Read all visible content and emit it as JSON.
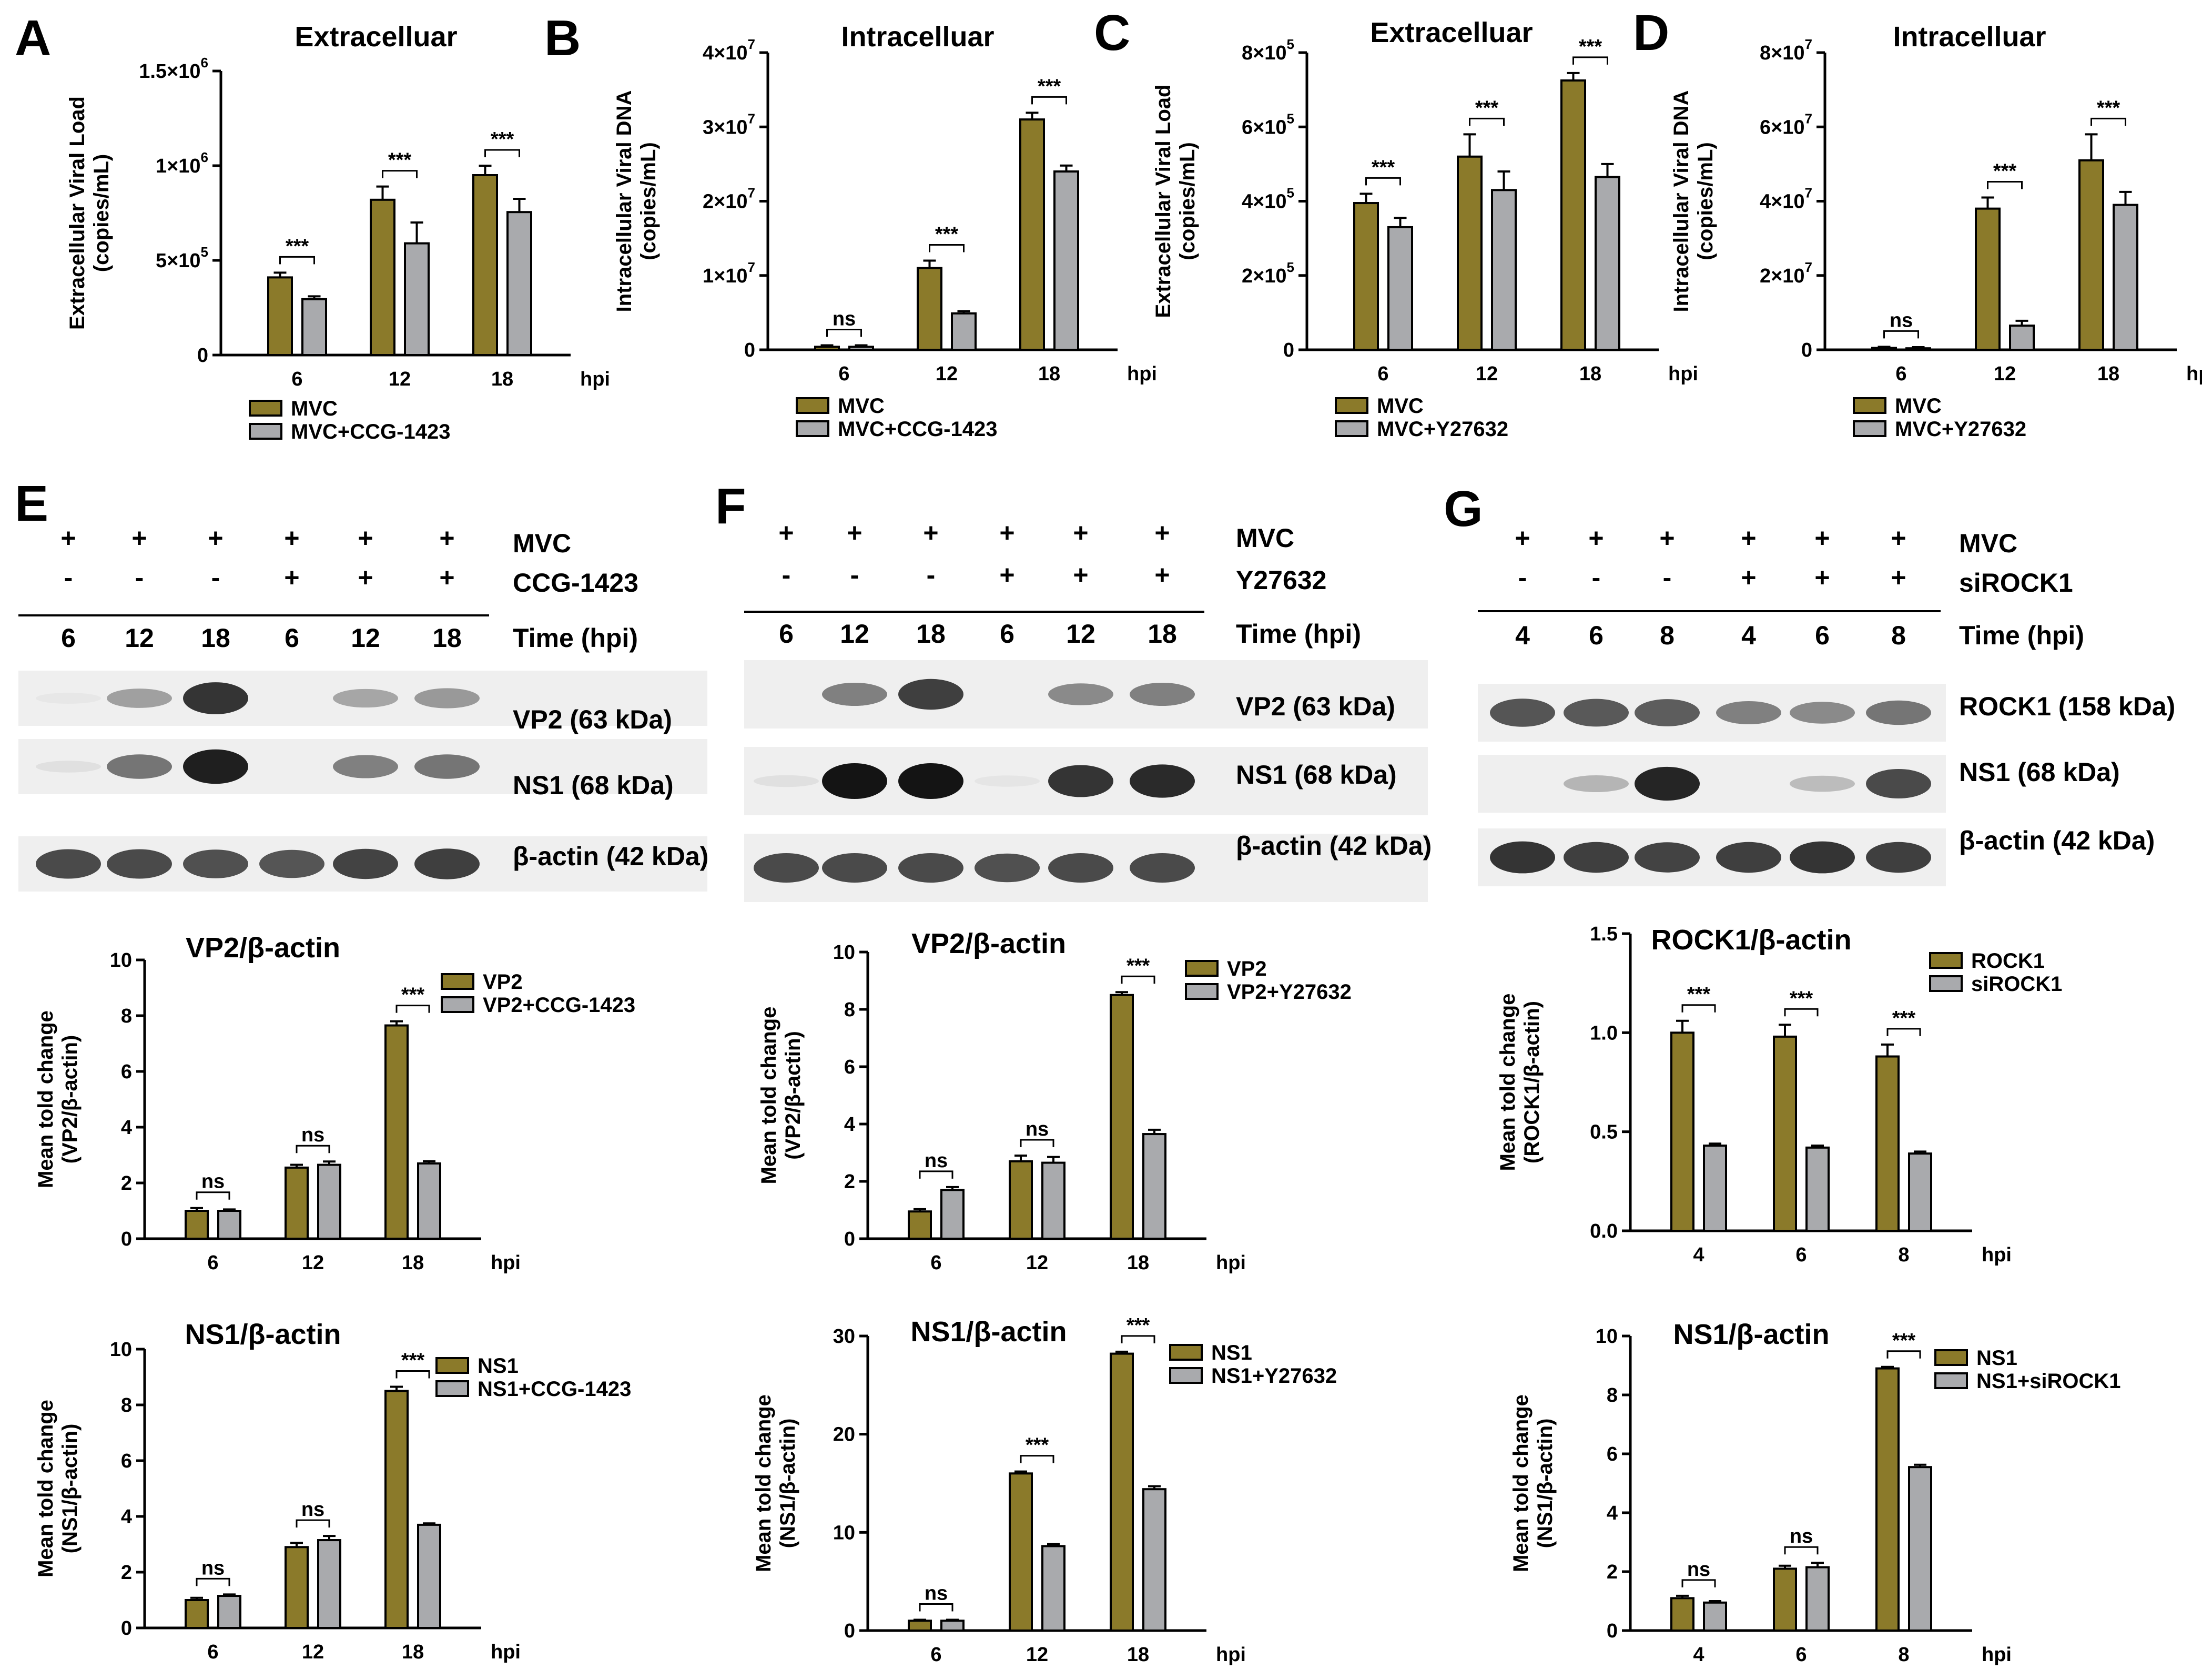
{
  "colors": {
    "drug": "#8b7a2a",
    "control": "#a9aaad",
    "error": "#000000"
  },
  "panels": {
    "A": {
      "letter": "A"
    },
    "B": {
      "letter": "B"
    },
    "C": {
      "letter": "C"
    },
    "D": {
      "letter": "D"
    },
    "E": {
      "letter": "E"
    },
    "F": {
      "letter": "F"
    },
    "G": {
      "letter": "G"
    }
  },
  "blots": [
    {
      "id": "E",
      "top_rows": [
        {
          "signs": [
            "+",
            "+",
            "+",
            "+",
            "+",
            "+"
          ],
          "label": "MVC"
        },
        {
          "signs": [
            "-",
            "-",
            "-",
            "+",
            "+",
            "+"
          ],
          "label": "CCG-1423"
        }
      ],
      "times": [
        "6",
        "12",
        "18",
        "6",
        "12",
        "18"
      ],
      "time_label": "Time (hpi)",
      "bands": [
        {
          "label": "VP2 (63 kDa)",
          "intensity": [
            0.02,
            0.35,
            0.85,
            0.0,
            0.32,
            0.38
          ]
        },
        {
          "label": "NS1 (68 kDa)",
          "intensity": [
            0.05,
            0.55,
            0.95,
            0.0,
            0.5,
            0.55
          ]
        },
        {
          "label": "β-actin (42 kDa)",
          "intensity": [
            0.75,
            0.75,
            0.72,
            0.7,
            0.78,
            0.8
          ]
        }
      ]
    },
    {
      "id": "F",
      "top_rows": [
        {
          "signs": [
            "+",
            "+",
            "+",
            "+",
            "+",
            "+"
          ],
          "label": "MVC"
        },
        {
          "signs": [
            "-",
            "-",
            "-",
            "+",
            "+",
            "+"
          ],
          "label": "Y27632"
        }
      ],
      "times": [
        "6",
        "12",
        "18",
        "6",
        "12",
        "18"
      ],
      "time_label": "Time (hpi)",
      "bands": [
        {
          "label": "VP2 (63 kDa)",
          "intensity": [
            0.0,
            0.5,
            0.8,
            0.0,
            0.45,
            0.5
          ]
        },
        {
          "label": "NS1 (68 kDa)",
          "intensity": [
            0.05,
            1.0,
            1.0,
            0.03,
            0.85,
            0.9
          ]
        },
        {
          "label": "β-actin (42 kDa)",
          "intensity": [
            0.75,
            0.75,
            0.75,
            0.72,
            0.75,
            0.75
          ]
        }
      ]
    },
    {
      "id": "G",
      "top_rows": [
        {
          "signs": [
            "+",
            "+",
            "+",
            "+",
            "+",
            "+"
          ],
          "label": "MVC"
        },
        {
          "signs": [
            "-",
            "-",
            "-",
            "+",
            "+",
            "+"
          ],
          "label": "siROCK1"
        }
      ],
      "times": [
        "4",
        "6",
        "8",
        "4",
        "6",
        "8"
      ],
      "time_label": "Time (hpi)",
      "bands": [
        {
          "label": "ROCK1 (158 kDa)",
          "intensity": [
            0.7,
            0.68,
            0.66,
            0.5,
            0.45,
            0.55
          ]
        },
        {
          "label": "NS1 (68 kDa)",
          "intensity": [
            0.0,
            0.25,
            0.92,
            0.0,
            0.22,
            0.75
          ]
        },
        {
          "label": "β-actin (42 kDa)",
          "intensity": [
            0.85,
            0.8,
            0.78,
            0.8,
            0.85,
            0.8
          ]
        }
      ]
    }
  ],
  "chart_data": [
    {
      "id": "A",
      "type": "bar",
      "title": "Extracelluar",
      "ylabel": [
        "Extracellular Viral Load",
        "(copies/mL)"
      ],
      "xunit": "hpi",
      "categories": [
        "6",
        "12",
        "18"
      ],
      "ylim": [
        0,
        1500000
      ],
      "yticks": [
        0,
        500000,
        1000000,
        1500000
      ],
      "ytick_labels": [
        {
          "m": "0",
          "e": ""
        },
        {
          "m": "5×10",
          "e": "5"
        },
        {
          "m": "1×10",
          "e": "6"
        },
        {
          "m": "1.5×10",
          "e": "6"
        }
      ],
      "series": [
        {
          "name": "MVC",
          "values": [
            410000,
            820000,
            950000
          ],
          "errors": [
            25000,
            70000,
            50000
          ]
        },
        {
          "name": "MVC+CCG-1423",
          "values": [
            295000,
            590000,
            755000
          ],
          "errors": [
            15000,
            110000,
            70000
          ]
        }
      ],
      "sig": [
        "***",
        "***",
        "***"
      ]
    },
    {
      "id": "B",
      "type": "bar",
      "title": "Intracelluar",
      "ylabel": [
        "Intracellular Viral DNA",
        "(copies/mL)"
      ],
      "xunit": "hpi",
      "categories": [
        "6",
        "12",
        "18"
      ],
      "ylim": [
        0,
        40000000
      ],
      "yticks": [
        0,
        10000000,
        20000000,
        30000000,
        40000000
      ],
      "ytick_labels": [
        {
          "m": "0",
          "e": ""
        },
        {
          "m": "1×10",
          "e": "7"
        },
        {
          "m": "2×10",
          "e": "7"
        },
        {
          "m": "3×10",
          "e": "7"
        },
        {
          "m": "4×10",
          "e": "7"
        }
      ],
      "series": [
        {
          "name": "MVC",
          "values": [
            400000,
            11000000,
            31000000
          ],
          "errors": [
            200000,
            1000000,
            900000
          ]
        },
        {
          "name": "MVC+CCG-1423",
          "values": [
            400000,
            4900000,
            24000000
          ],
          "errors": [
            200000,
            300000,
            800000
          ]
        }
      ],
      "sig": [
        "ns",
        "***",
        "***"
      ]
    },
    {
      "id": "C",
      "type": "bar",
      "title": "Extracelluar",
      "ylabel": [
        "Extracellular Viral Load",
        "(copies/mL)"
      ],
      "xunit": "hpi",
      "categories": [
        "6",
        "12",
        "18"
      ],
      "ylim": [
        0,
        800000
      ],
      "yticks": [
        0,
        200000,
        400000,
        600000,
        800000
      ],
      "ytick_labels": [
        {
          "m": "0",
          "e": ""
        },
        {
          "m": "2×10",
          "e": "5"
        },
        {
          "m": "4×10",
          "e": "5"
        },
        {
          "m": "6×10",
          "e": "5"
        },
        {
          "m": "8×10",
          "e": "5"
        }
      ],
      "series": [
        {
          "name": "MVC",
          "values": [
            395000,
            520000,
            725000
          ],
          "errors": [
            25000,
            60000,
            20000
          ]
        },
        {
          "name": "MVC+Y27632",
          "values": [
            330000,
            430000,
            465000
          ],
          "errors": [
            25000,
            50000,
            35000
          ]
        }
      ],
      "sig": [
        "***",
        "***",
        "***"
      ]
    },
    {
      "id": "D",
      "type": "bar",
      "title": "Intracelluar",
      "ylabel": [
        "Intracellular Viral DNA",
        "(copies/mL)"
      ],
      "xunit": "hpi",
      "categories": [
        "6",
        "12",
        "18"
      ],
      "ylim": [
        0,
        80000000
      ],
      "yticks": [
        0,
        20000000,
        40000000,
        60000000,
        80000000
      ],
      "ytick_labels": [
        {
          "m": "0",
          "e": ""
        },
        {
          "m": "2×10",
          "e": "7"
        },
        {
          "m": "4×10",
          "e": "7"
        },
        {
          "m": "6×10",
          "e": "7"
        },
        {
          "m": "8×10",
          "e": "7"
        }
      ],
      "series": [
        {
          "name": "MVC",
          "values": [
            500000,
            38000000,
            51000000
          ],
          "errors": [
            300000,
            3000000,
            7000000
          ]
        },
        {
          "name": "MVC+Y27632",
          "values": [
            400000,
            6500000,
            39000000
          ],
          "errors": [
            300000,
            1300000,
            3500000
          ]
        }
      ],
      "sig": [
        "ns",
        "***",
        "***"
      ]
    },
    {
      "id": "E1",
      "type": "bar",
      "title": "VP2/β-actin",
      "ylabel": [
        "Mean told change",
        "(VP2/β-actin)"
      ],
      "xunit": "hpi",
      "categories": [
        "6",
        "12",
        "18"
      ],
      "ylim": [
        0,
        10
      ],
      "yticks": [
        0,
        2,
        4,
        6,
        8,
        10
      ],
      "ytick_labels": [
        {
          "m": "0",
          "e": ""
        },
        {
          "m": "2",
          "e": ""
        },
        {
          "m": "4",
          "e": ""
        },
        {
          "m": "6",
          "e": ""
        },
        {
          "m": "8",
          "e": ""
        },
        {
          "m": "10",
          "e": ""
        }
      ],
      "series": [
        {
          "name": "VP2",
          "values": [
            1.0,
            2.55,
            7.65
          ],
          "errors": [
            0.1,
            0.1,
            0.15
          ]
        },
        {
          "name": "VP2+CCG-1423",
          "values": [
            1.0,
            2.65,
            2.7
          ],
          "errors": [
            0.05,
            0.12,
            0.08
          ]
        }
      ],
      "sig": [
        "ns",
        "ns",
        "***"
      ]
    },
    {
      "id": "E2",
      "type": "bar",
      "title": "NS1/β-actin",
      "ylabel": [
        "Mean told change",
        "(NS1/β-actin)"
      ],
      "xunit": "hpi",
      "categories": [
        "6",
        "12",
        "18"
      ],
      "ylim": [
        0,
        10
      ],
      "yticks": [
        0,
        2,
        4,
        6,
        8,
        10
      ],
      "ytick_labels": [
        {
          "m": "0",
          "e": ""
        },
        {
          "m": "2",
          "e": ""
        },
        {
          "m": "4",
          "e": ""
        },
        {
          "m": "6",
          "e": ""
        },
        {
          "m": "8",
          "e": ""
        },
        {
          "m": "10",
          "e": ""
        }
      ],
      "series": [
        {
          "name": "NS1",
          "values": [
            1.0,
            2.9,
            8.5
          ],
          "errors": [
            0.08,
            0.15,
            0.15
          ]
        },
        {
          "name": "NS1+CCG-1423",
          "values": [
            1.15,
            3.15,
            3.7
          ],
          "errors": [
            0.05,
            0.15,
            0.05
          ]
        }
      ],
      "sig": [
        "ns",
        "ns",
        "***"
      ]
    },
    {
      "id": "F1",
      "type": "bar",
      "title": "VP2/β-actin",
      "ylabel": [
        "Mean told change",
        "(VP2/β-actin)"
      ],
      "xunit": "hpi",
      "categories": [
        "6",
        "12",
        "18"
      ],
      "ylim": [
        0,
        10
      ],
      "yticks": [
        0,
        2,
        4,
        6,
        8,
        10
      ],
      "ytick_labels": [
        {
          "m": "0",
          "e": ""
        },
        {
          "m": "2",
          "e": ""
        },
        {
          "m": "4",
          "e": ""
        },
        {
          "m": "6",
          "e": ""
        },
        {
          "m": "8",
          "e": ""
        },
        {
          "m": "10",
          "e": ""
        }
      ],
      "series": [
        {
          "name": "VP2",
          "values": [
            0.95,
            2.7,
            8.5
          ],
          "errors": [
            0.08,
            0.2,
            0.1
          ]
        },
        {
          "name": "VP2+Y27632",
          "values": [
            1.7,
            2.65,
            3.65
          ],
          "errors": [
            0.1,
            0.2,
            0.15
          ]
        }
      ],
      "sig": [
        "ns",
        "ns",
        "***"
      ]
    },
    {
      "id": "F2",
      "type": "bar",
      "title": "NS1/β-actin",
      "ylabel": [
        "Mean told change",
        "(NS1/β-actin)"
      ],
      "xunit": "hpi",
      "categories": [
        "6",
        "12",
        "18"
      ],
      "ylim": [
        0,
        30
      ],
      "yticks": [
        0,
        10,
        20,
        30
      ],
      "ytick_labels": [
        {
          "m": "0",
          "e": ""
        },
        {
          "m": "10",
          "e": ""
        },
        {
          "m": "20",
          "e": ""
        },
        {
          "m": "30",
          "e": ""
        }
      ],
      "series": [
        {
          "name": "NS1",
          "values": [
            1.0,
            16.0,
            28.2
          ],
          "errors": [
            0.1,
            0.2,
            0.2
          ]
        },
        {
          "name": "NS1+Y27632",
          "values": [
            1.0,
            8.6,
            14.4
          ],
          "errors": [
            0.1,
            0.2,
            0.3
          ]
        }
      ],
      "sig": [
        "ns",
        "***",
        "***"
      ]
    },
    {
      "id": "G1",
      "type": "bar",
      "title": "ROCK1/β-actin",
      "ylabel": [
        "Mean told change",
        "(ROCK1/β-actin)"
      ],
      "xunit": "hpi",
      "categories": [
        "4",
        "6",
        "8"
      ],
      "ylim": [
        0,
        1.5
      ],
      "yticks": [
        0,
        0.5,
        1.0,
        1.5
      ],
      "ytick_labels": [
        {
          "m": "0.0",
          "e": ""
        },
        {
          "m": "0.5",
          "e": ""
        },
        {
          "m": "1.0",
          "e": ""
        },
        {
          "m": "1.5",
          "e": ""
        }
      ],
      "series": [
        {
          "name": "ROCK1",
          "values": [
            1.0,
            0.98,
            0.88
          ],
          "errors": [
            0.06,
            0.06,
            0.06
          ]
        },
        {
          "name": "siROCK1",
          "values": [
            0.43,
            0.42,
            0.39
          ],
          "errors": [
            0.01,
            0.01,
            0.01
          ]
        }
      ],
      "sig": [
        "***",
        "***",
        "***"
      ]
    },
    {
      "id": "G2",
      "type": "bar",
      "title": "NS1/β-actin",
      "ylabel": [
        "Mean told change",
        "(NS1/β-actin)"
      ],
      "xunit": "hpi",
      "categories": [
        "4",
        "6",
        "8"
      ],
      "ylim": [
        0,
        10
      ],
      "yticks": [
        0,
        2,
        4,
        6,
        8,
        10
      ],
      "ytick_labels": [
        {
          "m": "0",
          "e": ""
        },
        {
          "m": "2",
          "e": ""
        },
        {
          "m": "4",
          "e": ""
        },
        {
          "m": "6",
          "e": ""
        },
        {
          "m": "8",
          "e": ""
        },
        {
          "m": "10",
          "e": ""
        }
      ],
      "series": [
        {
          "name": "NS1",
          "values": [
            1.1,
            2.1,
            8.9
          ],
          "errors": [
            0.08,
            0.1,
            0.05
          ]
        },
        {
          "name": "NS1+siROCK1",
          "values": [
            0.95,
            2.15,
            5.55
          ],
          "errors": [
            0.05,
            0.15,
            0.08
          ]
        }
      ],
      "sig": [
        "ns",
        "ns",
        "***"
      ]
    }
  ]
}
